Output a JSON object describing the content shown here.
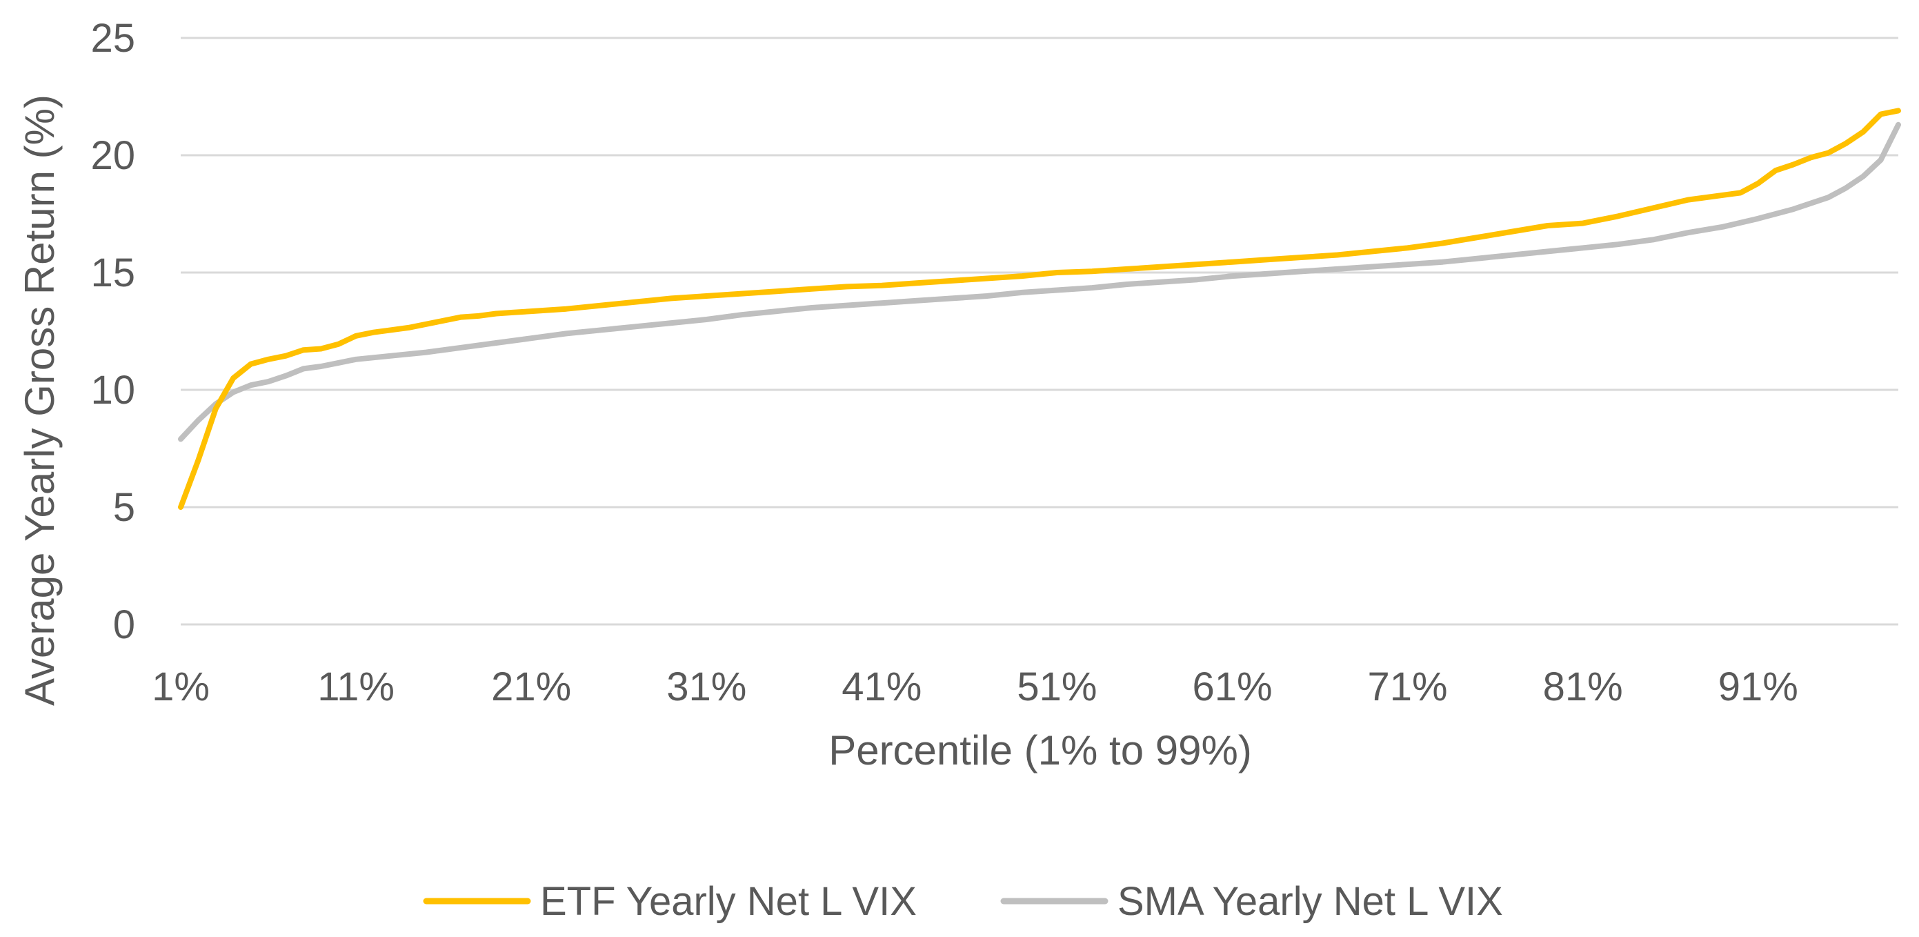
{
  "chart_data": {
    "type": "line",
    "title": "",
    "xlabel": "Percentile (1% to 99%)",
    "ylabel": "Average Yearly Gross Return (%)",
    "ylim": [
      0,
      25
    ],
    "yticks": [
      0,
      5,
      10,
      15,
      20,
      25
    ],
    "xlim": [
      1,
      99
    ],
    "xtick_values": [
      1,
      11,
      21,
      31,
      41,
      51,
      61,
      71,
      81,
      91
    ],
    "xtick_labels": [
      "1%",
      "11%",
      "21%",
      "31%",
      "41%",
      "51%",
      "61%",
      "71%",
      "81%",
      "91%"
    ],
    "grid": "horizontal",
    "legend": "bottom",
    "series": [
      {
        "name": "ETF Yearly Net L VIX",
        "color": "#FFC000",
        "x": [
          1,
          2,
          3,
          4,
          5,
          6,
          7,
          8,
          9,
          10,
          11,
          12,
          13,
          14,
          15,
          16,
          17,
          18,
          19,
          20,
          21,
          23,
          25,
          27,
          29,
          31,
          33,
          35,
          37,
          39,
          41,
          43,
          45,
          47,
          49,
          51,
          53,
          55,
          57,
          59,
          61,
          63,
          65,
          67,
          69,
          71,
          73,
          75,
          77,
          79,
          81,
          83,
          85,
          87,
          89,
          90,
          91,
          92,
          93,
          94,
          95,
          96,
          97,
          98,
          99
        ],
        "values": [
          5.0,
          7.0,
          9.2,
          10.5,
          11.1,
          11.3,
          11.45,
          11.7,
          11.75,
          11.95,
          12.3,
          12.45,
          12.55,
          12.65,
          12.8,
          12.95,
          13.1,
          13.15,
          13.25,
          13.3,
          13.35,
          13.45,
          13.6,
          13.75,
          13.9,
          14.0,
          14.1,
          14.2,
          14.3,
          14.4,
          14.45,
          14.55,
          14.65,
          14.75,
          14.85,
          15.0,
          15.05,
          15.15,
          15.25,
          15.35,
          15.45,
          15.55,
          15.65,
          15.75,
          15.9,
          16.05,
          16.25,
          16.5,
          16.75,
          17.0,
          17.1,
          17.4,
          17.75,
          18.1,
          18.3,
          18.4,
          18.8,
          19.35,
          19.6,
          19.9,
          20.1,
          20.5,
          21.0,
          21.75,
          21.9
        ]
      },
      {
        "name": "SMA Yearly Net L VIX",
        "color": "#BFBFBF",
        "x": [
          1,
          2,
          3,
          4,
          5,
          6,
          7,
          8,
          9,
          10,
          11,
          13,
          15,
          17,
          19,
          21,
          23,
          25,
          27,
          29,
          31,
          33,
          35,
          37,
          39,
          41,
          43,
          45,
          47,
          49,
          51,
          53,
          55,
          57,
          59,
          61,
          63,
          65,
          67,
          69,
          71,
          73,
          75,
          77,
          79,
          81,
          83,
          85,
          87,
          89,
          91,
          93,
          95,
          96,
          97,
          98,
          99
        ],
        "values": [
          7.9,
          8.7,
          9.4,
          9.9,
          10.2,
          10.35,
          10.6,
          10.9,
          11.0,
          11.15,
          11.3,
          11.45,
          11.6,
          11.8,
          12.0,
          12.2,
          12.4,
          12.55,
          12.7,
          12.85,
          13.0,
          13.2,
          13.35,
          13.5,
          13.6,
          13.7,
          13.8,
          13.9,
          14.0,
          14.15,
          14.25,
          14.35,
          14.5,
          14.6,
          14.7,
          14.85,
          14.95,
          15.05,
          15.15,
          15.25,
          15.35,
          15.45,
          15.6,
          15.75,
          15.9,
          16.05,
          16.2,
          16.4,
          16.7,
          16.95,
          17.3,
          17.7,
          18.2,
          18.6,
          19.1,
          19.8,
          21.3
        ]
      }
    ]
  }
}
